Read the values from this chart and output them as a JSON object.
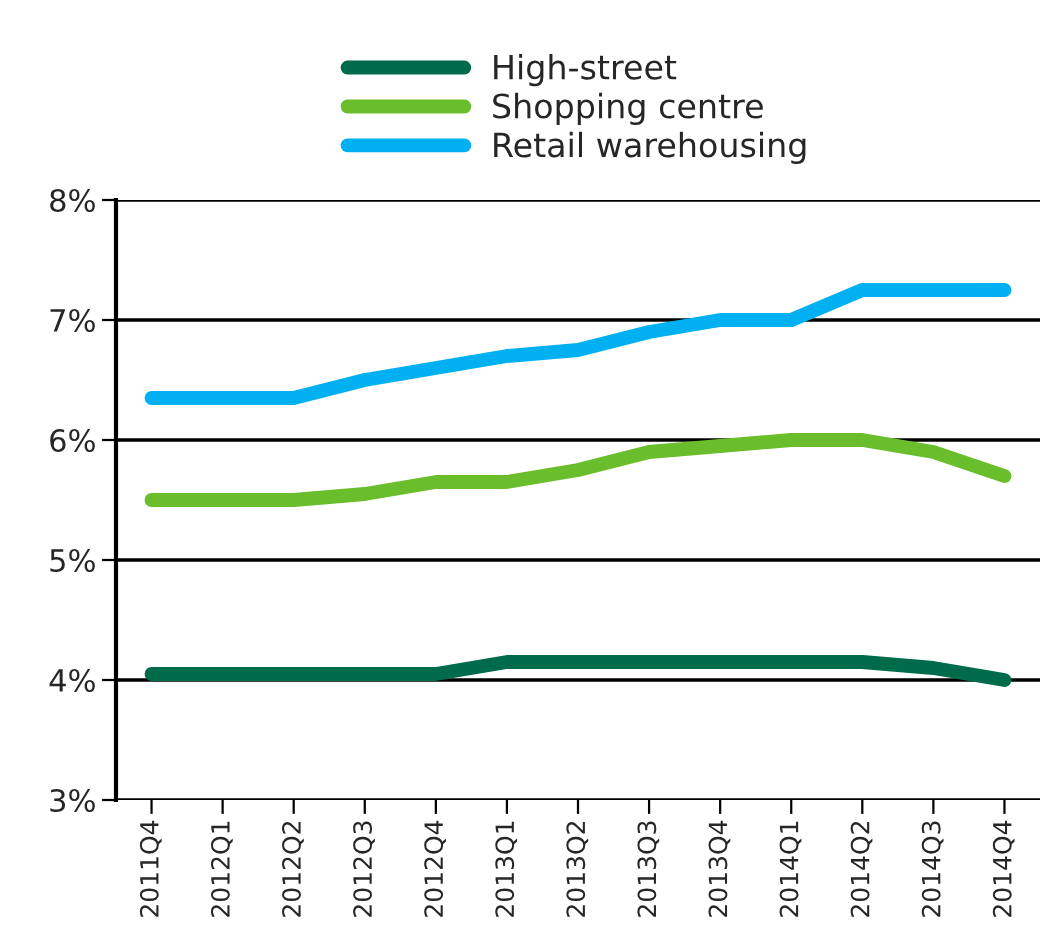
{
  "chart_data": {
    "type": "line",
    "categories": [
      "2011Q4",
      "2012Q1",
      "2012Q2",
      "2012Q3",
      "2012Q4",
      "2013Q1",
      "2013Q2",
      "2013Q3",
      "2013Q4",
      "2014Q1",
      "2014Q2",
      "2014Q3",
      "2014Q4"
    ],
    "series": [
      {
        "name": "High-street",
        "color": "#006b4a",
        "values": [
          4.05,
          4.05,
          4.05,
          4.05,
          4.05,
          4.15,
          4.15,
          4.15,
          4.15,
          4.15,
          4.15,
          4.1,
          4.0
        ]
      },
      {
        "name": "Shopping centre",
        "color": "#6abd2b",
        "values": [
          5.5,
          5.5,
          5.5,
          5.55,
          5.65,
          5.65,
          5.75,
          5.9,
          5.95,
          6.0,
          6.0,
          5.9,
          5.7
        ]
      },
      {
        "name": "Retail warehousing",
        "color": "#00b0f0",
        "values": [
          6.35,
          6.35,
          6.35,
          6.5,
          6.6,
          6.7,
          6.75,
          6.9,
          7.0,
          7.0,
          7.25,
          7.25,
          7.25
        ]
      }
    ],
    "ylim": [
      3,
      8
    ],
    "yticks": [
      {
        "value": 3,
        "label": "3%"
      },
      {
        "value": 4,
        "label": "4%"
      },
      {
        "value": 5,
        "label": "5%"
      },
      {
        "value": 6,
        "label": "6%"
      },
      {
        "value": 7,
        "label": "7%"
      },
      {
        "value": 8,
        "label": "8%"
      }
    ],
    "grid": "y",
    "legend": "top",
    "marker": "none",
    "line_style": "solid"
  }
}
